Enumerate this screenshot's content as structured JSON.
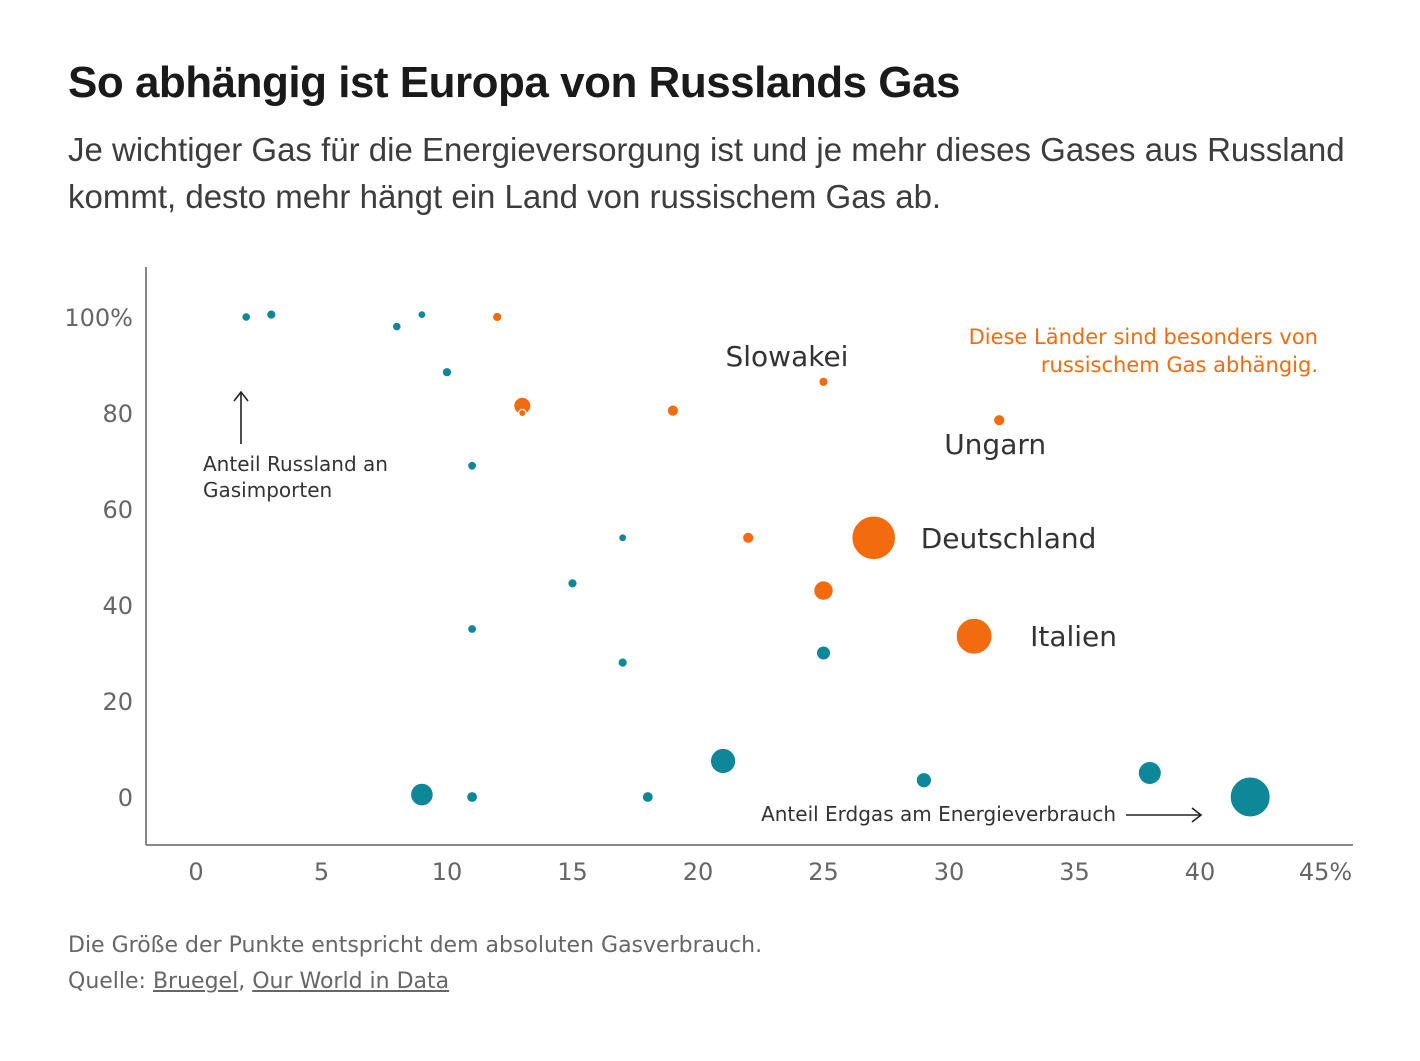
{
  "title": "So abhängig ist Europa von Russlands Gas",
  "subtitle": "Je wichtiger Gas für die Energieversorgung ist und je mehr dieses Gases aus Russland kommt, desto mehr hängt ein Land von russischem Gas ab.",
  "colors": {
    "teal": "#0e8799",
    "orange": "#f26b0f",
    "axis": "#888888",
    "text": "#333333"
  },
  "chart_data": {
    "type": "scatter",
    "title": "So abhängig ist Europa von Russlands Gas",
    "xlabel": "Anteil Erdgas am Energieverbrauch",
    "ylabel": "Anteil Russland an Gasimporten",
    "x_unit": "%",
    "y_unit": "%",
    "xlim": [
      -2,
      46
    ],
    "ylim": [
      -10,
      110
    ],
    "x_ticks": [
      "0",
      "5",
      "10",
      "15",
      "20",
      "25",
      "30",
      "35",
      "40",
      "45"
    ],
    "y_ticks": [
      "0",
      "20",
      "40",
      "60",
      "80",
      "100"
    ],
    "grid": false,
    "size_note": "Die Größe der Punkte entspricht dem absoluten Gasverbrauch.",
    "points": [
      {
        "x": 2,
        "y": 100,
        "group": "teal",
        "size": 1
      },
      {
        "x": 3,
        "y": 100.5,
        "group": "teal",
        "size": 1.2
      },
      {
        "x": 8,
        "y": 98,
        "group": "teal",
        "size": 1
      },
      {
        "x": 9,
        "y": 100.5,
        "group": "teal",
        "size": 0.9
      },
      {
        "x": 12,
        "y": 100,
        "group": "orange",
        "size": 1.2
      },
      {
        "x": 10,
        "y": 88.5,
        "group": "teal",
        "size": 1.2
      },
      {
        "x": 13,
        "y": 81.5,
        "group": "orange",
        "size": 3.2
      },
      {
        "x": 13,
        "y": 80,
        "group": "orange",
        "size": 0.7
      },
      {
        "x": 19,
        "y": 80.5,
        "group": "orange",
        "size": 1.7
      },
      {
        "x": 25,
        "y": 86.5,
        "group": "orange",
        "size": 1.2,
        "label": "Slowakei"
      },
      {
        "x": 32,
        "y": 78.5,
        "group": "orange",
        "size": 1.7,
        "label": "Ungarn"
      },
      {
        "x": 11,
        "y": 69,
        "group": "teal",
        "size": 1.1
      },
      {
        "x": 17,
        "y": 54,
        "group": "teal",
        "size": 0.9
      },
      {
        "x": 22,
        "y": 54,
        "group": "orange",
        "size": 1.7
      },
      {
        "x": 27,
        "y": 54,
        "group": "orange",
        "size": 10,
        "label": "Deutschland"
      },
      {
        "x": 15,
        "y": 44.5,
        "group": "teal",
        "size": 1.2
      },
      {
        "x": 25,
        "y": 43,
        "group": "orange",
        "size": 3.8
      },
      {
        "x": 31,
        "y": 33.5,
        "group": "orange",
        "size": 8,
        "label": "Italien"
      },
      {
        "x": 11,
        "y": 35,
        "group": "teal",
        "size": 1.1
      },
      {
        "x": 17,
        "y": 28,
        "group": "teal",
        "size": 1.2
      },
      {
        "x": 25,
        "y": 30,
        "group": "teal",
        "size": 2.4
      },
      {
        "x": 21,
        "y": 7.5,
        "group": "teal",
        "size": 5.3
      },
      {
        "x": 29,
        "y": 3.5,
        "group": "teal",
        "size": 2.7
      },
      {
        "x": 38,
        "y": 5,
        "group": "teal",
        "size": 4.7
      },
      {
        "x": 9,
        "y": 0.5,
        "group": "teal",
        "size": 4.6
      },
      {
        "x": 11,
        "y": 0,
        "group": "teal",
        "size": 1.6
      },
      {
        "x": 18,
        "y": 0,
        "group": "teal",
        "size": 1.6
      },
      {
        "x": 42,
        "y": 0,
        "group": "teal",
        "size": 9.1
      }
    ],
    "annotations": [
      {
        "text_lines": [
          "Anteil Russland an",
          "Gasimporten"
        ],
        "kind": "arrow-up"
      },
      {
        "text_lines": [
          "Anteil Erdgas am Energieverbrauch"
        ],
        "kind": "arrow-right"
      },
      {
        "text_lines": [
          "Diese Länder sind besonders von",
          "russischem Gas abhängig."
        ],
        "kind": "highlight-note"
      }
    ]
  },
  "footer": {
    "note": "Die Größe der Punkte entspricht dem absoluten Gasverbrauch.",
    "source_prefix": "Quelle: ",
    "source_1": "Bruegel",
    "source_separator": ", ",
    "source_2": "Our World in Data"
  }
}
